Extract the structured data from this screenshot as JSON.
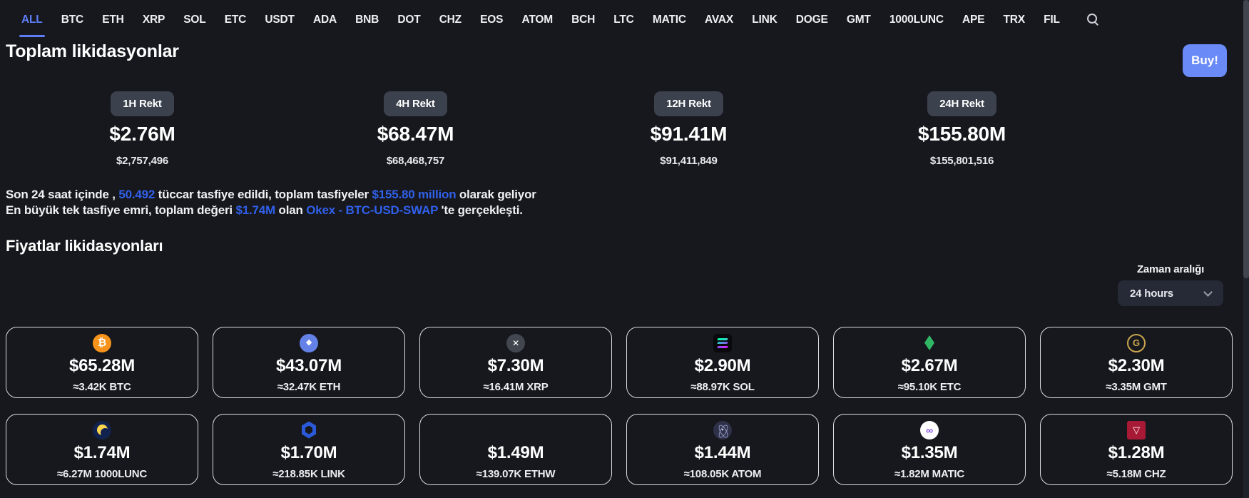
{
  "nav": {
    "items": [
      {
        "label": "ALL",
        "active": true
      },
      {
        "label": "BTC"
      },
      {
        "label": "ETH"
      },
      {
        "label": "XRP"
      },
      {
        "label": "SOL"
      },
      {
        "label": "ETC"
      },
      {
        "label": "USDT"
      },
      {
        "label": "ADA"
      },
      {
        "label": "BNB"
      },
      {
        "label": "DOT"
      },
      {
        "label": "CHZ"
      },
      {
        "label": "EOS"
      },
      {
        "label": "ATOM"
      },
      {
        "label": "BCH"
      },
      {
        "label": "LTC"
      },
      {
        "label": "MATIC"
      },
      {
        "label": "AVAX"
      },
      {
        "label": "LINK"
      },
      {
        "label": "DOGE"
      },
      {
        "label": "GMT"
      },
      {
        "label": "1000LUNC"
      },
      {
        "label": "APE"
      },
      {
        "label": "TRX"
      },
      {
        "label": "FIL"
      }
    ],
    "search_icon": "search-icon"
  },
  "header": {
    "title": "Toplam likidasyonlar",
    "buy_label": "Buy!"
  },
  "stats": [
    {
      "badge": "1H Rekt",
      "value": "$2.76M",
      "exact": "$2,757,496"
    },
    {
      "badge": "4H Rekt",
      "value": "$68.47M",
      "exact": "$68,468,757"
    },
    {
      "badge": "12H Rekt",
      "value": "$91.41M",
      "exact": "$91,411,849"
    },
    {
      "badge": "24H Rekt",
      "value": "$155.80M",
      "exact": "$155,801,516"
    }
  ],
  "summary": {
    "line1": [
      {
        "text": "Son 24 saat içinde , ",
        "highlight": false
      },
      {
        "text": "50.492",
        "highlight": true
      },
      {
        "text": " tüccar tasfiye edildi, toplam tasfiyeler ",
        "highlight": false
      },
      {
        "text": "$155.80 million",
        "highlight": true
      },
      {
        "text": " olarak geliyor",
        "highlight": false
      }
    ],
    "line2": [
      {
        "text": "En büyük tek tasfiye emri, toplam değeri ",
        "highlight": false
      },
      {
        "text": "$1.74M",
        "highlight": true
      },
      {
        "text": " olan ",
        "highlight": false
      },
      {
        "text": "Okex - BTC-USD-SWAP",
        "highlight": true,
        "link": true
      },
      {
        "text": " 'te gerçekleşti.",
        "highlight": false
      }
    ]
  },
  "prices_section": {
    "title": "Fiyatlar likidasyonları",
    "time_range_label": "Zaman aralığı",
    "time_range_value": "24 hours",
    "chevron_icon": "chevron-down-icon"
  },
  "cards": [
    {
      "symbol": "BTC",
      "value": "$65.28M",
      "amount": "≈3.42K BTC",
      "icon": "btc-icon",
      "glyph": "₿",
      "bg": "#F7931A",
      "fg": "#FFFFFF"
    },
    {
      "symbol": "ETH",
      "value": "$43.07M",
      "amount": "≈32.47K ETH",
      "icon": "eth-icon",
      "glyph": "◆",
      "bg": "#6481E7",
      "fg": "#FFFFFF"
    },
    {
      "symbol": "XRP",
      "value": "$7.30M",
      "amount": "≈16.41M XRP",
      "icon": "xrp-icon",
      "glyph": "✕",
      "bg": "#42474F",
      "fg": "#FFFFFF"
    },
    {
      "symbol": "SOL",
      "value": "$2.90M",
      "amount": "≈88.97K SOL",
      "icon": "sol-icon",
      "glyph": "",
      "bg": "#0A0A0D",
      "fg": ""
    },
    {
      "symbol": "ETC",
      "value": "$2.67M",
      "amount": "≈95.10K ETC",
      "icon": "etc-icon",
      "glyph": "",
      "bg": "transparent",
      "fg": "#2FB765"
    },
    {
      "symbol": "GMT",
      "value": "$2.30M",
      "amount": "≈3.35M GMT",
      "icon": "gmt-icon",
      "glyph": "G",
      "bg": "transparent",
      "fg": "#C9A64D"
    },
    {
      "symbol": "1000LUNC",
      "value": "$1.74M",
      "amount": "≈6.27M 1000LUNC",
      "icon": "lunc-icon",
      "glyph": "",
      "bg": "#10224D",
      "fg": "#FFD550"
    },
    {
      "symbol": "LINK",
      "value": "$1.70M",
      "amount": "≈218.85K LINK",
      "icon": "link-icon",
      "glyph": "",
      "bg": "transparent",
      "fg": "#2A5ADA"
    },
    {
      "symbol": "ETHW",
      "value": "$1.49M",
      "amount": "≈139.07K ETHW",
      "icon": "ethw-icon",
      "glyph": "",
      "bg": "transparent",
      "fg": ""
    },
    {
      "symbol": "ATOM",
      "value": "$1.44M",
      "amount": "≈108.05K ATOM",
      "icon": "atom-icon",
      "glyph": "•",
      "bg": "#2E3148",
      "fg": "#C7CBE8"
    },
    {
      "symbol": "MATIC",
      "value": "$1.35M",
      "amount": "≈1.82M MATIC",
      "icon": "matic-icon",
      "glyph": "∞",
      "bg": "#FFFFFF",
      "fg": "#8247E5"
    },
    {
      "symbol": "CHZ",
      "value": "$1.28M",
      "amount": "≈5.18M CHZ",
      "icon": "chz-icon",
      "glyph": "▽",
      "bg": "#A71935",
      "fg": "#FFFFFF"
    }
  ],
  "colors": {
    "background": "#17181d",
    "accent_blue": "#3060ea",
    "nav_active": "#5d7ef5",
    "buy_button": "#6a8af8",
    "badge_bg": "#3c414e",
    "card_border": "#d9dbdf",
    "dropdown_bg": "#262a36"
  }
}
